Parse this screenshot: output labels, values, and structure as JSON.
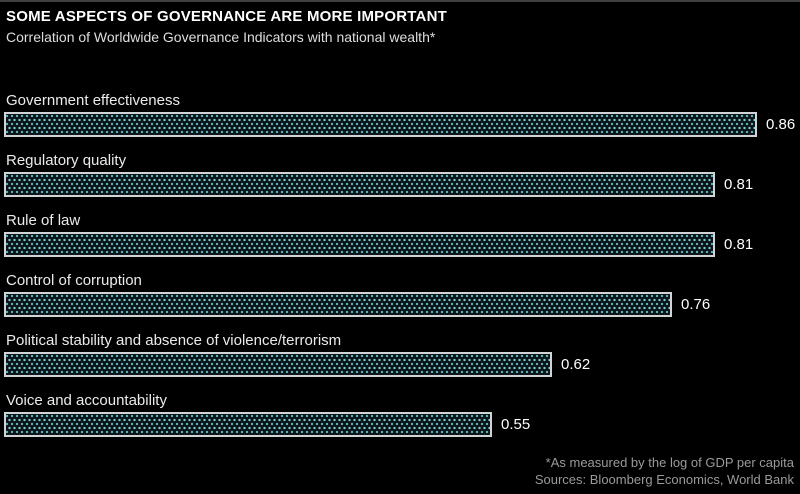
{
  "header": {
    "title": "SOME ASPECTS OF GOVERNANCE ARE MORE IMPORTANT",
    "subtitle": "Correlation of Worldwide Governance Indicators with national wealth*"
  },
  "chart_data": {
    "type": "bar",
    "orientation": "horizontal",
    "title": "SOME ASPECTS OF GOVERNANCE ARE MORE IMPORTANT",
    "subtitle": "Correlation of Worldwide Governance Indicators with national wealth*",
    "categories": [
      "Government effectiveness",
      "Regulatory quality",
      "Rule of law",
      "Control of corruption",
      "Political stability and absence of violence/terrorism",
      "Voice and accountability"
    ],
    "values": [
      0.86,
      0.81,
      0.81,
      0.76,
      0.62,
      0.55
    ],
    "value_labels": [
      "0.86",
      "0.81",
      "0.81",
      "0.76",
      "0.62",
      "0.55"
    ],
    "xlabel": "",
    "ylabel": "",
    "xlim": [
      0,
      0.9
    ],
    "grid": false,
    "legend": false,
    "data_labels_position": "right-of-bar",
    "bar_style": "teal halftone dots on dark fill with light gray border"
  },
  "footer": {
    "footnote": "*As measured by the log of GDP per capita",
    "sources": "Sources: Bloomberg Economics, World Bank"
  },
  "colors": {
    "background": "#000000",
    "top_rule": "#3f3f3f",
    "title_text": "#ffffff",
    "subtitle_text": "#dedede",
    "label_text": "#ebebeb",
    "value_text": "#ffffff",
    "footer_text": "#9a9a9a",
    "bar_border": "#d0d4d6",
    "bar_fill_background": "#0b1417",
    "bar_dot": "#7fd0d6"
  }
}
